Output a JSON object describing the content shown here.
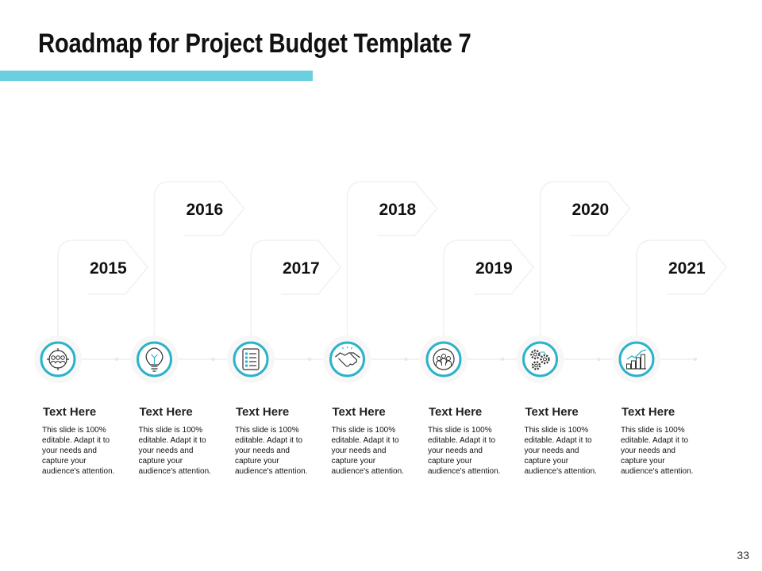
{
  "slide": {
    "title": "Roadmap for Project Budget Template 7",
    "page_number": "33",
    "accent_color": "#6bcfe0",
    "ring_color": "#2bb3c8"
  },
  "milestones": [
    {
      "year": "2015",
      "icon": "team-target-icon",
      "title": "Text Here",
      "text": "This slide is 100%\neditable.  Adapt it to\nyour needs and\ncapture your\naudience's attention."
    },
    {
      "year": "2016",
      "icon": "lightbulb-icon",
      "title": "Text Here",
      "text": "This slide is 100%\neditable.  Adapt it to\nyour needs and\ncapture your\naudience's attention."
    },
    {
      "year": "2017",
      "icon": "checklist-icon",
      "title": "Text Here",
      "text": "This slide is 100%\neditable.  Adapt it to\nyour needs and\ncapture your\naudience's attention."
    },
    {
      "year": "2018",
      "icon": "handshake-icon",
      "title": "Text Here",
      "text": "This slide is 100%\neditable.  Adapt it to\nyour needs and\ncapture your\naudience's attention."
    },
    {
      "year": "2019",
      "icon": "group-users-icon",
      "title": "Text Here",
      "text": "This slide is 100%\neditable.  Adapt it to\nyour needs and\ncapture your\naudience's attention."
    },
    {
      "year": "2020",
      "icon": "gears-icon",
      "title": "Text Here",
      "text": "This slide is 100%\neditable.  Adapt it to\nyour needs and\ncapture your\naudience's attention."
    },
    {
      "year": "2021",
      "icon": "growth-chart-icon",
      "title": "Text Here",
      "text": "This slide is 100%\neditable.  Adapt it to\nyour needs and\ncapture your\naudience's attention."
    }
  ]
}
